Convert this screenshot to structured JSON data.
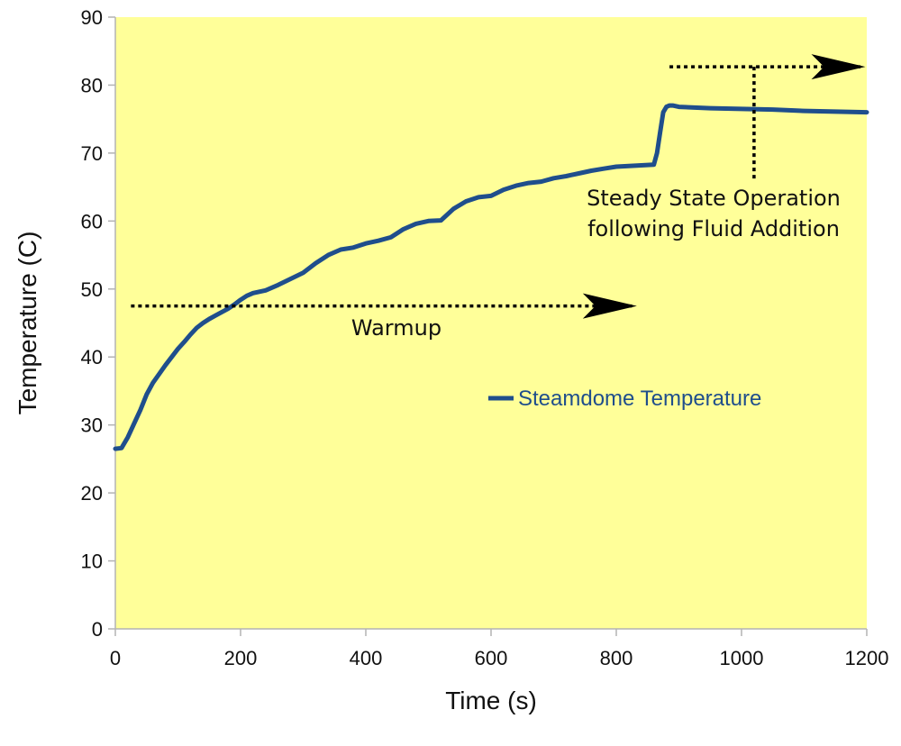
{
  "chart_data": {
    "type": "line",
    "title": "",
    "xlabel": "Time (s)",
    "ylabel": "Temperature (C)",
    "xlim": [
      0,
      1200
    ],
    "ylim": [
      0,
      90
    ],
    "x_ticks": [
      0,
      200,
      400,
      600,
      800,
      1000,
      1200
    ],
    "y_ticks": [
      0,
      10,
      20,
      30,
      40,
      50,
      60,
      70,
      80,
      90
    ],
    "grid": false,
    "legend_position": "center-right",
    "plot_background": "#ffff99",
    "series": [
      {
        "name": "Steamdome Temperature",
        "color": "#1f4e8c",
        "x": [
          0,
          10,
          20,
          30,
          40,
          50,
          60,
          70,
          80,
          90,
          100,
          110,
          120,
          130,
          140,
          150,
          160,
          170,
          180,
          190,
          200,
          210,
          220,
          240,
          260,
          280,
          300,
          320,
          340,
          360,
          380,
          400,
          420,
          440,
          460,
          480,
          500,
          520,
          540,
          560,
          580,
          600,
          620,
          640,
          660,
          680,
          700,
          720,
          740,
          760,
          780,
          800,
          820,
          840,
          860,
          865,
          870,
          875,
          880,
          885,
          890,
          900,
          950,
          1000,
          1050,
          1100,
          1150,
          1200
        ],
        "y": [
          26.5,
          26.6,
          28.2,
          30.2,
          32.2,
          34.5,
          36.2,
          37.5,
          38.8,
          40.0,
          41.2,
          42.2,
          43.3,
          44.3,
          45.0,
          45.6,
          46.1,
          46.6,
          47.1,
          47.7,
          48.4,
          49.0,
          49.4,
          49.8,
          50.6,
          51.5,
          52.4,
          53.8,
          55.0,
          55.8,
          56.1,
          56.7,
          57.1,
          57.6,
          58.8,
          59.6,
          60.0,
          60.1,
          61.8,
          62.9,
          63.5,
          63.7,
          64.6,
          65.2,
          65.6,
          65.8,
          66.3,
          66.6,
          67.0,
          67.4,
          67.7,
          68.0,
          68.1,
          68.2,
          68.3,
          70.0,
          73.0,
          76.0,
          76.8,
          77.0,
          77.0,
          76.8,
          76.6,
          76.5,
          76.4,
          76.2,
          76.1,
          76.0
        ]
      }
    ],
    "annotations": [
      {
        "lines": [
          "Warmup"
        ],
        "arrow": {
          "x_start": 25,
          "x_end": 830,
          "y": 47.5
        }
      },
      {
        "lines": [
          "Steady State Operation",
          "following Fluid Addition"
        ],
        "arrow": {
          "x_start": 885,
          "x_end": 1195,
          "y": 82.7
        },
        "leader": {
          "x": 1020,
          "y_start": 82.7,
          "y_end": 67.0
        }
      }
    ]
  }
}
